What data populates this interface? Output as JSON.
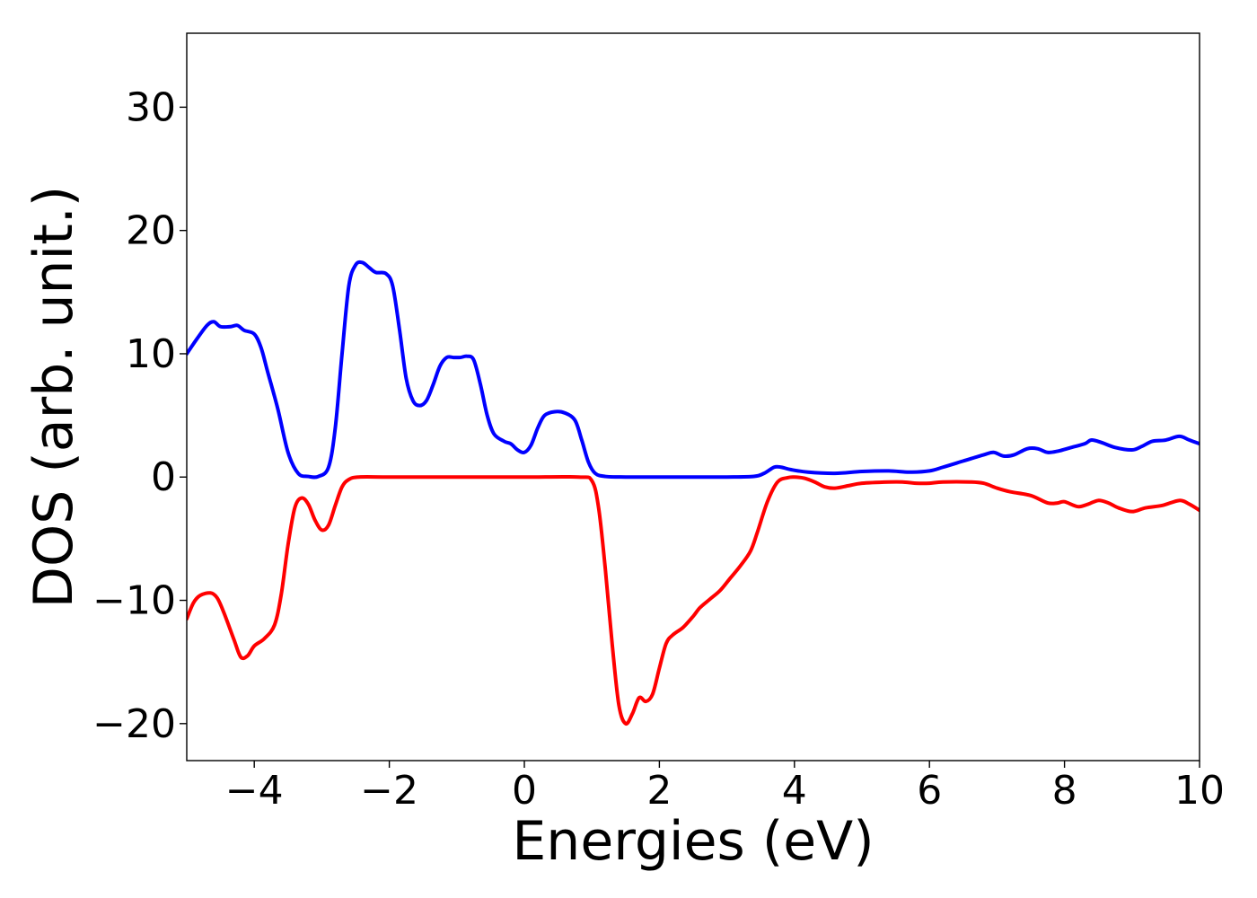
{
  "chart_data": {
    "type": "line",
    "title": "",
    "xlabel": "Energies (eV)",
    "ylabel": "DOS (arb. unit.)",
    "xlim": [
      -5,
      10
    ],
    "ylim": [
      -23,
      36
    ],
    "grid": false,
    "legend": "none",
    "x_ticks": [
      {
        "value": -4,
        "label": "−4"
      },
      {
        "value": -2,
        "label": "−2"
      },
      {
        "value": 0,
        "label": "0"
      },
      {
        "value": 2,
        "label": "2"
      },
      {
        "value": 4,
        "label": "4"
      },
      {
        "value": 6,
        "label": "6"
      },
      {
        "value": 8,
        "label": "8"
      },
      {
        "value": 10,
        "label": "10"
      }
    ],
    "y_ticks": [
      {
        "value": -20,
        "label": "−20"
      },
      {
        "value": -10,
        "label": "−10"
      },
      {
        "value": 0,
        "label": "0"
      },
      {
        "value": 10,
        "label": "10"
      },
      {
        "value": 20,
        "label": "20"
      },
      {
        "value": 30,
        "label": "30"
      }
    ],
    "series": [
      {
        "color": "#0000ff",
        "points": [
          [
            -5.0,
            10.0
          ],
          [
            -4.85,
            11.2
          ],
          [
            -4.7,
            12.3
          ],
          [
            -4.6,
            12.6
          ],
          [
            -4.5,
            12.2
          ],
          [
            -4.35,
            12.2
          ],
          [
            -4.25,
            12.3
          ],
          [
            -4.15,
            11.9
          ],
          [
            -4.0,
            11.6
          ],
          [
            -3.9,
            10.5
          ],
          [
            -3.8,
            8.5
          ],
          [
            -3.65,
            5.5
          ],
          [
            -3.5,
            2.0
          ],
          [
            -3.35,
            0.3
          ],
          [
            -3.2,
            0.05
          ],
          [
            -3.05,
            0.05
          ],
          [
            -2.9,
            0.8
          ],
          [
            -2.8,
            4.0
          ],
          [
            -2.7,
            10.0
          ],
          [
            -2.6,
            15.5
          ],
          [
            -2.5,
            17.2
          ],
          [
            -2.4,
            17.4
          ],
          [
            -2.3,
            17.0
          ],
          [
            -2.2,
            16.6
          ],
          [
            -2.05,
            16.5
          ],
          [
            -1.95,
            15.5
          ],
          [
            -1.85,
            12.0
          ],
          [
            -1.75,
            8.0
          ],
          [
            -1.65,
            6.2
          ],
          [
            -1.55,
            5.8
          ],
          [
            -1.45,
            6.2
          ],
          [
            -1.35,
            7.5
          ],
          [
            -1.25,
            9.0
          ],
          [
            -1.15,
            9.7
          ],
          [
            -1.05,
            9.7
          ],
          [
            -0.95,
            9.7
          ],
          [
            -0.85,
            9.8
          ],
          [
            -0.75,
            9.5
          ],
          [
            -0.65,
            7.5
          ],
          [
            -0.55,
            5.0
          ],
          [
            -0.45,
            3.5
          ],
          [
            -0.3,
            2.9
          ],
          [
            -0.2,
            2.7
          ],
          [
            -0.1,
            2.2
          ],
          [
            0.0,
            2.0
          ],
          [
            0.1,
            2.6
          ],
          [
            0.2,
            4.0
          ],
          [
            0.3,
            5.0
          ],
          [
            0.45,
            5.3
          ],
          [
            0.6,
            5.2
          ],
          [
            0.75,
            4.6
          ],
          [
            0.85,
            3.0
          ],
          [
            0.95,
            1.2
          ],
          [
            1.05,
            0.3
          ],
          [
            1.2,
            0.05
          ],
          [
            1.5,
            0.0
          ],
          [
            2.0,
            0.0
          ],
          [
            2.5,
            0.0
          ],
          [
            3.0,
            0.0
          ],
          [
            3.4,
            0.05
          ],
          [
            3.55,
            0.3
          ],
          [
            3.7,
            0.8
          ],
          [
            3.8,
            0.8
          ],
          [
            3.95,
            0.6
          ],
          [
            4.2,
            0.4
          ],
          [
            4.6,
            0.3
          ],
          [
            5.0,
            0.45
          ],
          [
            5.4,
            0.5
          ],
          [
            5.7,
            0.4
          ],
          [
            6.0,
            0.5
          ],
          [
            6.2,
            0.8
          ],
          [
            6.5,
            1.3
          ],
          [
            6.8,
            1.8
          ],
          [
            6.95,
            2.0
          ],
          [
            7.1,
            1.7
          ],
          [
            7.25,
            1.8
          ],
          [
            7.45,
            2.3
          ],
          [
            7.6,
            2.3
          ],
          [
            7.75,
            2.0
          ],
          [
            7.9,
            2.1
          ],
          [
            8.1,
            2.4
          ],
          [
            8.3,
            2.7
          ],
          [
            8.4,
            3.0
          ],
          [
            8.55,
            2.8
          ],
          [
            8.75,
            2.4
          ],
          [
            9.0,
            2.2
          ],
          [
            9.15,
            2.5
          ],
          [
            9.3,
            2.9
          ],
          [
            9.5,
            3.0
          ],
          [
            9.7,
            3.3
          ],
          [
            9.85,
            3.0
          ],
          [
            10.0,
            2.7
          ]
        ]
      },
      {
        "color": "#ff0000",
        "points": [
          [
            -5.0,
            -11.5
          ],
          [
            -4.9,
            -10.2
          ],
          [
            -4.8,
            -9.6
          ],
          [
            -4.65,
            -9.4
          ],
          [
            -4.55,
            -9.8
          ],
          [
            -4.45,
            -11.0
          ],
          [
            -4.3,
            -13.2
          ],
          [
            -4.2,
            -14.6
          ],
          [
            -4.1,
            -14.5
          ],
          [
            -4.0,
            -13.7
          ],
          [
            -3.85,
            -13.1
          ],
          [
            -3.7,
            -12.0
          ],
          [
            -3.6,
            -9.5
          ],
          [
            -3.5,
            -5.5
          ],
          [
            -3.4,
            -2.5
          ],
          [
            -3.3,
            -1.7
          ],
          [
            -3.2,
            -2.2
          ],
          [
            -3.1,
            -3.5
          ],
          [
            -3.0,
            -4.3
          ],
          [
            -2.9,
            -3.9
          ],
          [
            -2.8,
            -2.3
          ],
          [
            -2.7,
            -0.8
          ],
          [
            -2.6,
            -0.2
          ],
          [
            -2.45,
            0.0
          ],
          [
            -2.0,
            0.0
          ],
          [
            -1.0,
            0.0
          ],
          [
            0.0,
            0.0
          ],
          [
            0.8,
            0.0
          ],
          [
            1.0,
            -0.3
          ],
          [
            1.1,
            -2.5
          ],
          [
            1.2,
            -7.5
          ],
          [
            1.3,
            -13.5
          ],
          [
            1.4,
            -18.5
          ],
          [
            1.5,
            -20.0
          ],
          [
            1.6,
            -19.2
          ],
          [
            1.7,
            -17.9
          ],
          [
            1.8,
            -18.2
          ],
          [
            1.9,
            -17.6
          ],
          [
            2.0,
            -15.5
          ],
          [
            2.1,
            -13.5
          ],
          [
            2.2,
            -12.8
          ],
          [
            2.35,
            -12.2
          ],
          [
            2.5,
            -11.3
          ],
          [
            2.6,
            -10.6
          ],
          [
            2.75,
            -9.9
          ],
          [
            2.9,
            -9.2
          ],
          [
            3.05,
            -8.2
          ],
          [
            3.2,
            -7.2
          ],
          [
            3.35,
            -6.0
          ],
          [
            3.45,
            -4.5
          ],
          [
            3.6,
            -2.0
          ],
          [
            3.75,
            -0.4
          ],
          [
            3.9,
            -0.05
          ],
          [
            4.0,
            0.0
          ],
          [
            4.15,
            -0.1
          ],
          [
            4.3,
            -0.4
          ],
          [
            4.45,
            -0.8
          ],
          [
            4.6,
            -0.9
          ],
          [
            4.8,
            -0.7
          ],
          [
            5.0,
            -0.5
          ],
          [
            5.4,
            -0.4
          ],
          [
            5.6,
            -0.4
          ],
          [
            5.8,
            -0.5
          ],
          [
            6.0,
            -0.5
          ],
          [
            6.2,
            -0.4
          ],
          [
            6.6,
            -0.4
          ],
          [
            6.8,
            -0.5
          ],
          [
            7.0,
            -0.9
          ],
          [
            7.2,
            -1.2
          ],
          [
            7.5,
            -1.5
          ],
          [
            7.75,
            -2.1
          ],
          [
            7.9,
            -2.1
          ],
          [
            8.0,
            -2.0
          ],
          [
            8.2,
            -2.4
          ],
          [
            8.35,
            -2.2
          ],
          [
            8.5,
            -1.9
          ],
          [
            8.65,
            -2.1
          ],
          [
            8.8,
            -2.5
          ],
          [
            9.0,
            -2.8
          ],
          [
            9.2,
            -2.5
          ],
          [
            9.45,
            -2.3
          ],
          [
            9.7,
            -1.9
          ],
          [
            9.85,
            -2.2
          ],
          [
            10.0,
            -2.7
          ]
        ]
      }
    ]
  }
}
